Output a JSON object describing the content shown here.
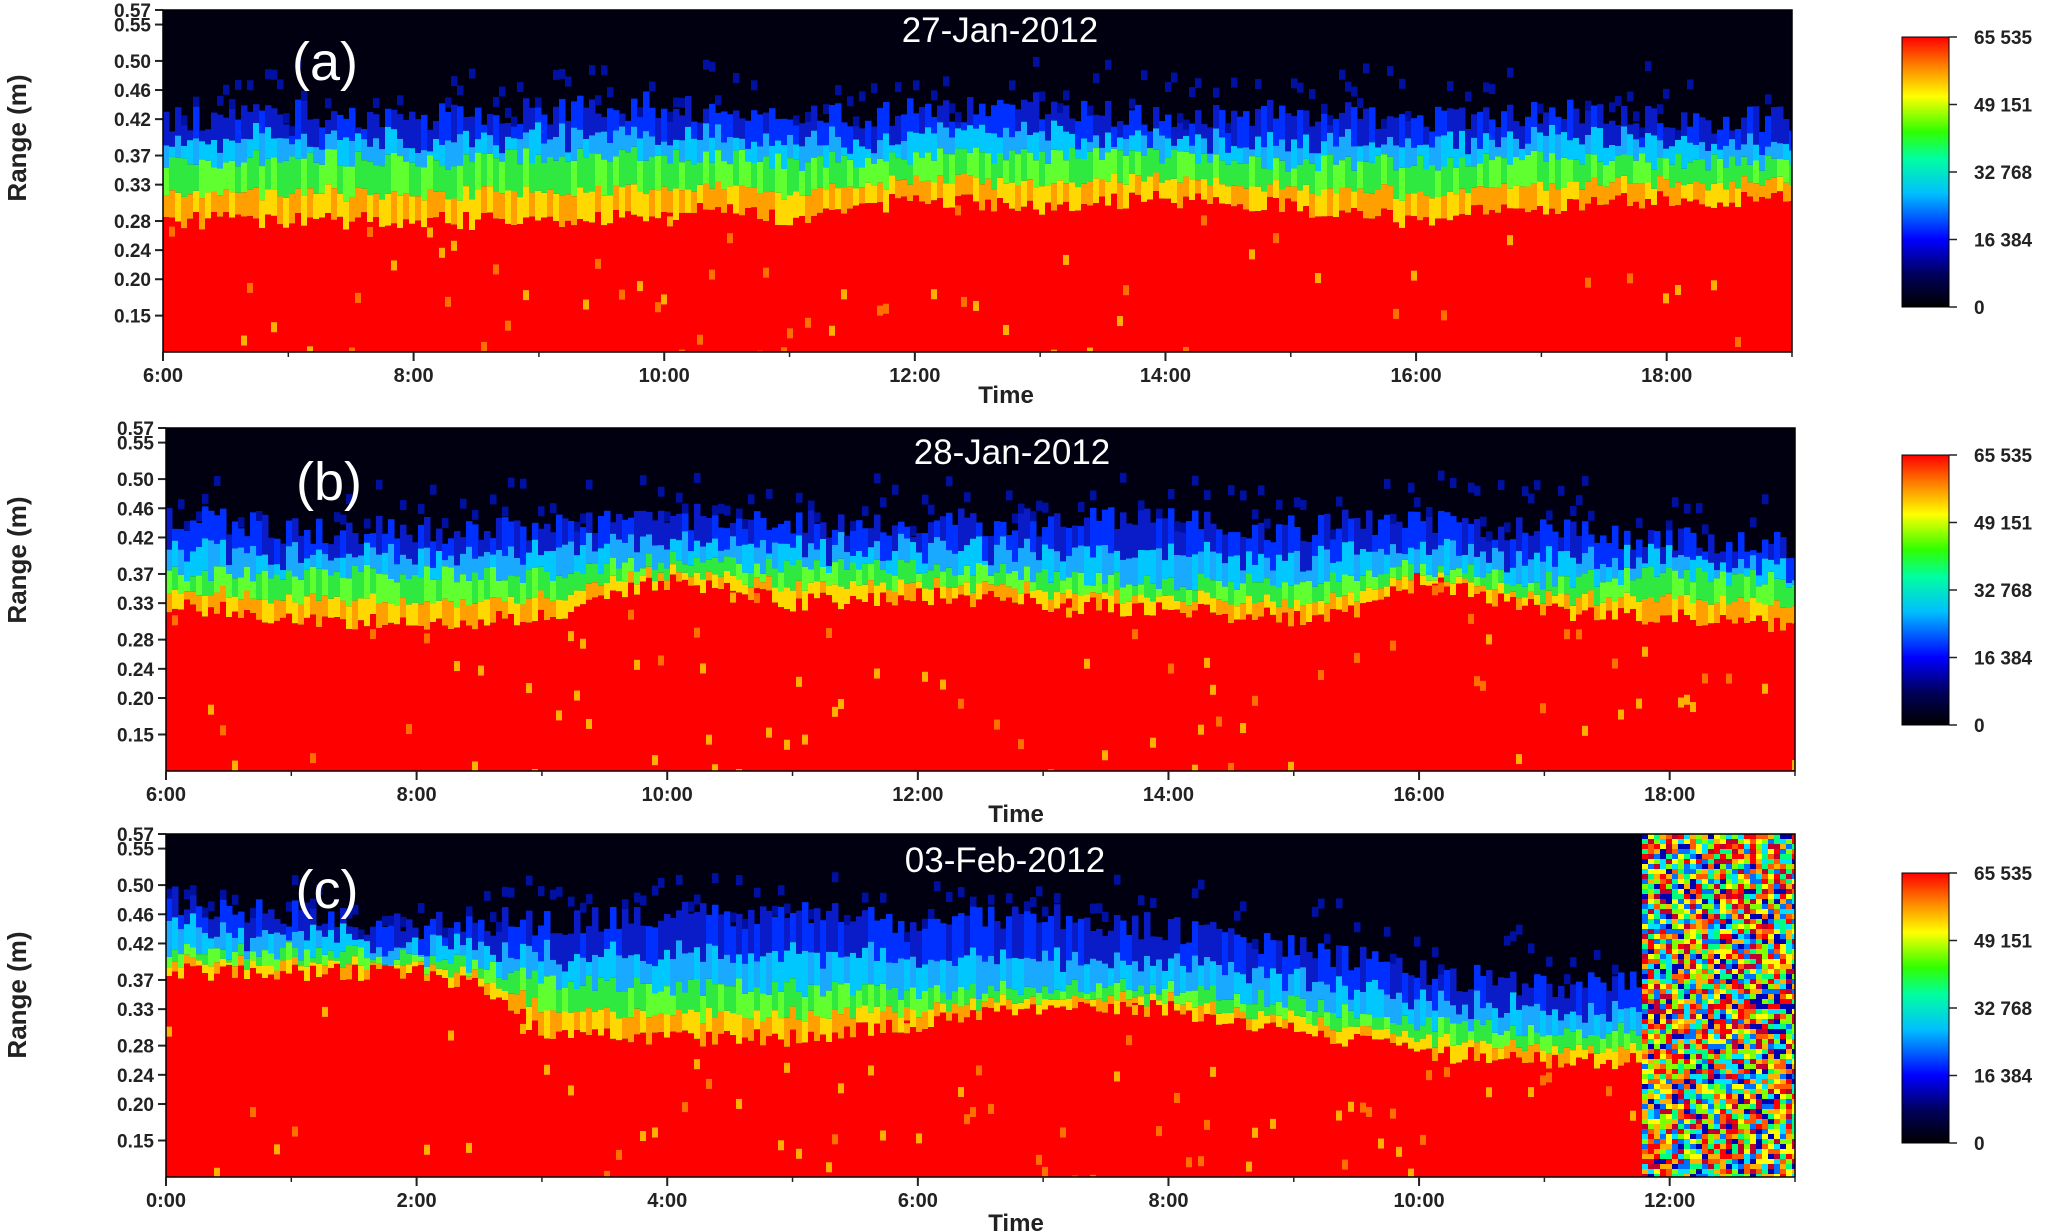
{
  "figure": {
    "description_free": true
  },
  "chart_data": [
    {
      "type": "heatmap",
      "panel_label": "(a)",
      "title": "27-Jan-2012",
      "xlabel": "Time",
      "ylabel": "Range (m)",
      "x_ticks": [
        "6:00",
        "8:00",
        "10:00",
        "12:00",
        "14:00",
        "16:00",
        "18:00"
      ],
      "xlim": [
        "6:00",
        "19:00"
      ],
      "y_ticks": [
        "0.15",
        "0.20",
        "0.24",
        "0.28",
        "0.33",
        "0.37",
        "0.42",
        "0.46",
        "0.50",
        "0.55",
        "0.57"
      ],
      "ylim": [
        0.1,
        0.57
      ],
      "colorbar": {
        "ticks": [
          "65 535",
          "49 151",
          "32 768",
          "16 384",
          "0"
        ],
        "range": [
          0,
          65535
        ],
        "colormap": "jet"
      },
      "surface_level": {
        "note_free": true,
        "x": [
          6.0,
          7.0,
          8.0,
          9.0,
          10.0,
          10.5,
          11.0,
          12.0,
          13.0,
          14.0,
          15.0,
          16.0,
          17.0,
          18.0,
          19.0
        ],
        "red_top": [
          0.28,
          0.28,
          0.28,
          0.28,
          0.29,
          0.3,
          0.28,
          0.31,
          0.3,
          0.31,
          0.3,
          0.28,
          0.3,
          0.31,
          0.31
        ],
        "green_top": [
          0.36,
          0.37,
          0.36,
          0.37,
          0.37,
          0.37,
          0.36,
          0.37,
          0.37,
          0.37,
          0.36,
          0.36,
          0.37,
          0.36,
          0.36
        ],
        "blue_top": [
          0.42,
          0.43,
          0.42,
          0.43,
          0.44,
          0.43,
          0.42,
          0.43,
          0.44,
          0.42,
          0.43,
          0.42,
          0.43,
          0.42,
          0.42
        ]
      }
    },
    {
      "type": "heatmap",
      "panel_label": "(b)",
      "title": "28-Jan-2012",
      "xlabel": "Time",
      "ylabel": "Range (m)",
      "x_ticks": [
        "6:00",
        "8:00",
        "10:00",
        "12:00",
        "14:00",
        "16:00",
        "18:00"
      ],
      "xlim": [
        "6:00",
        "19:00"
      ],
      "y_ticks": [
        "0.15",
        "0.20",
        "0.24",
        "0.28",
        "0.33",
        "0.37",
        "0.42",
        "0.46",
        "0.50",
        "0.55",
        "0.57"
      ],
      "ylim": [
        0.1,
        0.57
      ],
      "colorbar": {
        "ticks": [
          "65 535",
          "49 151",
          "32 768",
          "16 384",
          "0"
        ],
        "range": [
          0,
          65535
        ],
        "colormap": "jet"
      },
      "surface_level": {
        "x": [
          6.0,
          7.0,
          8.0,
          9.0,
          10.0,
          11.0,
          12.0,
          13.0,
          14.0,
          15.0,
          15.5,
          16.0,
          17.0,
          18.0,
          19.0
        ],
        "red_top": [
          0.33,
          0.31,
          0.3,
          0.31,
          0.36,
          0.33,
          0.34,
          0.33,
          0.32,
          0.31,
          0.32,
          0.36,
          0.32,
          0.31,
          0.3
        ],
        "green_top": [
          0.37,
          0.37,
          0.37,
          0.37,
          0.39,
          0.38,
          0.38,
          0.37,
          0.36,
          0.36,
          0.37,
          0.38,
          0.36,
          0.37,
          0.36
        ],
        "blue_top": [
          0.45,
          0.43,
          0.43,
          0.43,
          0.45,
          0.44,
          0.44,
          0.44,
          0.45,
          0.43,
          0.44,
          0.44,
          0.43,
          0.42,
          0.41
        ]
      }
    },
    {
      "type": "heatmap",
      "panel_label": "(c)",
      "title": "03-Feb-2012",
      "xlabel": "Time",
      "ylabel": "Range (m)",
      "x_ticks": [
        "0:00",
        "2:00",
        "4:00",
        "6:00",
        "8:00",
        "10:00",
        "12:00"
      ],
      "xlim": [
        "0:00",
        "13:00"
      ],
      "y_ticks": [
        "0.15",
        "0.20",
        "0.24",
        "0.28",
        "0.33",
        "0.37",
        "0.42",
        "0.46",
        "0.50",
        "0.55",
        "0.57"
      ],
      "ylim": [
        0.1,
        0.57
      ],
      "colorbar": {
        "ticks": [
          "65 535",
          "49 151",
          "32 768",
          "16 384",
          "0"
        ],
        "range": [
          0,
          65535
        ],
        "colormap": "jet"
      },
      "surface_level": {
        "x": [
          0.0,
          1.0,
          2.0,
          2.5,
          3.0,
          4.0,
          5.0,
          6.0,
          7.0,
          8.0,
          9.0,
          10.0,
          11.0,
          11.8,
          12.0,
          13.0
        ],
        "red_top": [
          0.38,
          0.38,
          0.38,
          0.36,
          0.3,
          0.29,
          0.29,
          0.31,
          0.33,
          0.33,
          0.3,
          0.27,
          0.26,
          0.26,
          0.26,
          0.26
        ],
        "green_top": [
          0.41,
          0.41,
          0.4,
          0.39,
          0.37,
          0.36,
          0.36,
          0.35,
          0.36,
          0.36,
          0.34,
          0.31,
          0.3,
          0.3,
          0.3,
          0.3
        ],
        "blue_top": [
          0.48,
          0.46,
          0.44,
          0.45,
          0.45,
          0.46,
          0.46,
          0.45,
          0.46,
          0.44,
          0.42,
          0.38,
          0.36,
          0.37,
          0.57,
          0.57
        ],
        "noise_from_x": 11.8
      }
    }
  ]
}
